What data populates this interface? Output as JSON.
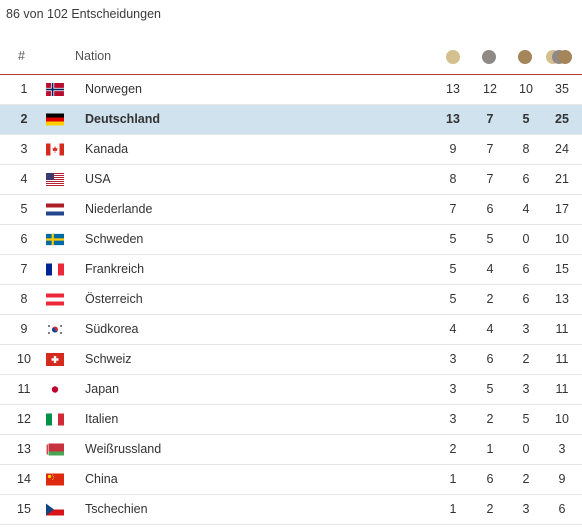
{
  "summary": "86 von 102 Entscheidungen",
  "header": {
    "rank": "#",
    "nation": "Nation"
  },
  "medal_colors": {
    "gold": "#d4c08e",
    "silver": "#8f8a86",
    "bronze": "#a5865a"
  },
  "highlight_color": "#cfe2ee",
  "rows": [
    {
      "rank": "1",
      "nation": "Norwegen",
      "flag": "norway-flag-icon",
      "gold": "13",
      "silver": "12",
      "bronze": "10",
      "total": "35"
    },
    {
      "rank": "2",
      "nation": "Deutschland",
      "flag": "germany-flag-icon",
      "gold": "13",
      "silver": "7",
      "bronze": "5",
      "total": "25",
      "highlighted": true
    },
    {
      "rank": "3",
      "nation": "Kanada",
      "flag": "canada-flag-icon",
      "gold": "9",
      "silver": "7",
      "bronze": "8",
      "total": "24"
    },
    {
      "rank": "4",
      "nation": "USA",
      "flag": "usa-flag-icon",
      "gold": "8",
      "silver": "7",
      "bronze": "6",
      "total": "21"
    },
    {
      "rank": "5",
      "nation": "Niederlande",
      "flag": "netherlands-flag-icon",
      "gold": "7",
      "silver": "6",
      "bronze": "4",
      "total": "17"
    },
    {
      "rank": "6",
      "nation": "Schweden",
      "flag": "sweden-flag-icon",
      "gold": "5",
      "silver": "5",
      "bronze": "0",
      "total": "10"
    },
    {
      "rank": "7",
      "nation": "Frankreich",
      "flag": "france-flag-icon",
      "gold": "5",
      "silver": "4",
      "bronze": "6",
      "total": "15"
    },
    {
      "rank": "8",
      "nation": "Österreich",
      "flag": "austria-flag-icon",
      "gold": "5",
      "silver": "2",
      "bronze": "6",
      "total": "13"
    },
    {
      "rank": "9",
      "nation": "Südkorea",
      "flag": "south-korea-flag-icon",
      "gold": "4",
      "silver": "4",
      "bronze": "3",
      "total": "11"
    },
    {
      "rank": "10",
      "nation": "Schweiz",
      "flag": "switzerland-flag-icon",
      "gold": "3",
      "silver": "6",
      "bronze": "2",
      "total": "11"
    },
    {
      "rank": "11",
      "nation": "Japan",
      "flag": "japan-flag-icon",
      "gold": "3",
      "silver": "5",
      "bronze": "3",
      "total": "11"
    },
    {
      "rank": "12",
      "nation": "Italien",
      "flag": "italy-flag-icon",
      "gold": "3",
      "silver": "2",
      "bronze": "5",
      "total": "10"
    },
    {
      "rank": "13",
      "nation": "Weißrussland",
      "flag": "belarus-flag-icon",
      "gold": "2",
      "silver": "1",
      "bronze": "0",
      "total": "3"
    },
    {
      "rank": "14",
      "nation": "China",
      "flag": "china-flag-icon",
      "gold": "1",
      "silver": "6",
      "bronze": "2",
      "total": "9"
    },
    {
      "rank": "15",
      "nation": "Tschechien",
      "flag": "czech-flag-icon",
      "gold": "1",
      "silver": "2",
      "bronze": "3",
      "total": "6"
    }
  ]
}
